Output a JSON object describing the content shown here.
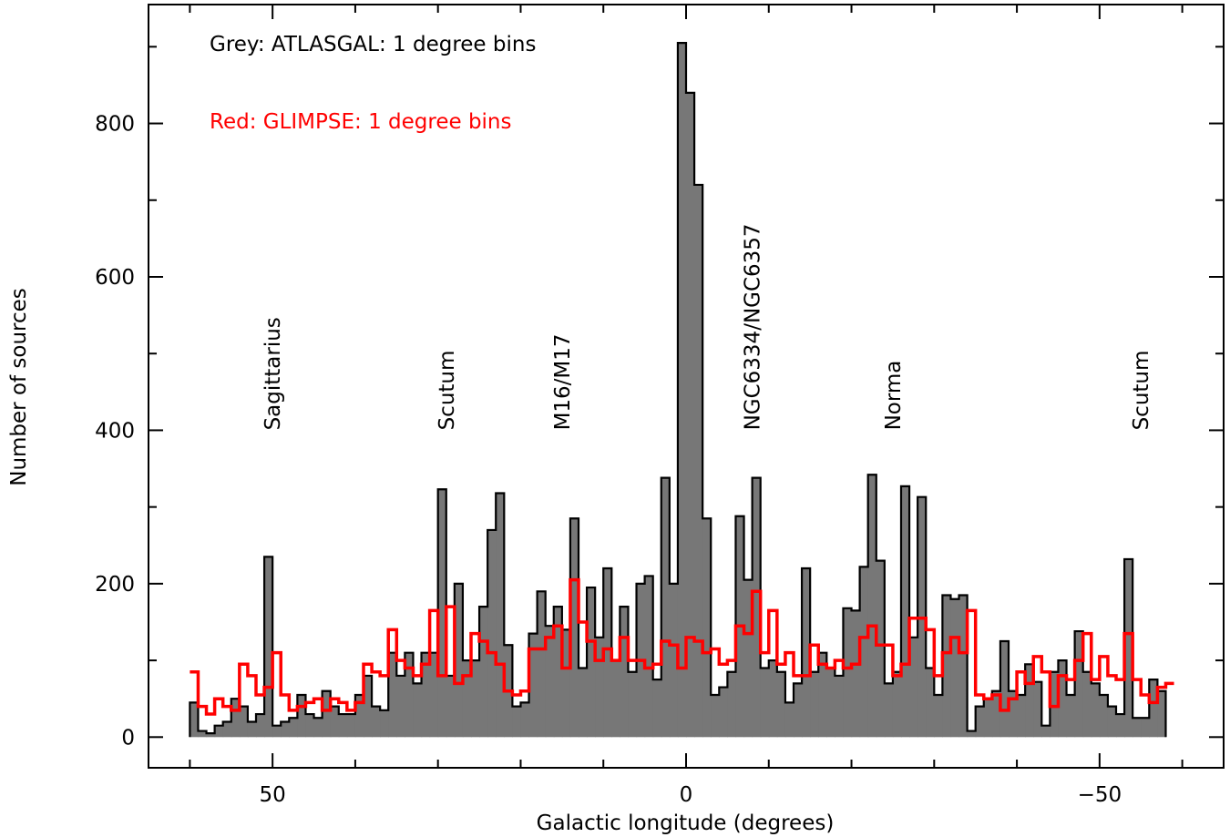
{
  "chart_data": {
    "type": "histogram",
    "xlabel": "Galactic longitude (degrees)",
    "ylabel": "Number of sources",
    "xlim": [
      65,
      -65
    ],
    "ylim": [
      -40,
      955
    ],
    "x_ticks": [
      50,
      0,
      -50
    ],
    "x_tick_labels": [
      "50",
      "0",
      "−50"
    ],
    "y_ticks": [
      0,
      200,
      400,
      600,
      800
    ],
    "y_tick_labels": [
      "0",
      "200",
      "400",
      "600",
      "800"
    ],
    "grid": false,
    "legend": [
      {
        "text": "Grey: ATLASGAL: 1 degree bins",
        "color": "#000000"
      },
      {
        "text": "Red: GLIMPSE: 1 degree bins",
        "color": "#ff0000"
      }
    ],
    "annotations": [
      {
        "text": "Sagittarius",
        "l": 50
      },
      {
        "text": "Scutum",
        "l": 29
      },
      {
        "text": "M16/M17",
        "l": 15
      },
      {
        "text": "NGC6334/NGC6357",
        "l": -8
      },
      {
        "text": "Norma",
        "l": -25
      },
      {
        "text": "Scutum",
        "l": -55
      }
    ],
    "bin_edges_start": 60,
    "bin_width": 1,
    "series": [
      {
        "name": "ATLASGAL",
        "color": "#777777",
        "values": [
          45,
          8,
          5,
          15,
          20,
          50,
          40,
          20,
          30,
          235,
          15,
          20,
          25,
          55,
          30,
          25,
          60,
          40,
          30,
          30,
          55,
          80,
          40,
          35,
          110,
          80,
          110,
          70,
          110,
          110,
          323,
          80,
          200,
          100,
          100,
          170,
          270,
          318,
          120,
          40,
          45,
          135,
          190,
          145,
          170,
          140,
          285,
          90,
          195,
          130,
          220,
          100,
          170,
          85,
          200,
          210,
          75,
          338,
          200,
          905,
          840,
          720,
          285,
          55,
          65,
          85,
          288,
          205,
          338,
          90,
          100,
          85,
          45,
          70,
          220,
          85,
          110,
          90,
          80,
          168,
          165,
          222,
          342,
          230,
          70,
          85,
          327,
          130,
          313,
          90,
          55,
          185,
          180,
          185,
          8,
          40,
          50,
          60,
          125,
          60,
          55,
          95,
          72,
          15,
          85,
          100,
          55,
          138,
          85,
          70,
          55,
          40,
          30,
          232,
          25,
          25,
          75,
          60
        ]
      },
      {
        "name": "GLIMPSE",
        "color": "#ff0000",
        "values": [
          85,
          40,
          30,
          50,
          40,
          35,
          95,
          80,
          55,
          65,
          110,
          55,
          35,
          40,
          45,
          50,
          35,
          50,
          45,
          35,
          45,
          95,
          85,
          80,
          140,
          100,
          90,
          80,
          95,
          165,
          80,
          170,
          70,
          80,
          135,
          125,
          110,
          95,
          60,
          55,
          60,
          115,
          115,
          130,
          145,
          90,
          205,
          150,
          125,
          100,
          115,
          100,
          130,
          100,
          100,
          90,
          95,
          125,
          120,
          90,
          130,
          125,
          110,
          115,
          95,
          100,
          145,
          135,
          190,
          110,
          165,
          95,
          110,
          80,
          80,
          120,
          95,
          90,
          100,
          90,
          95,
          130,
          145,
          120,
          120,
          80,
          95,
          155,
          155,
          140,
          80,
          110,
          130,
          110,
          165,
          55,
          50,
          55,
          35,
          50,
          85,
          70,
          105,
          85,
          40,
          80,
          75,
          100,
          135,
          75,
          105,
          80,
          75,
          135,
          75,
          55,
          45,
          65,
          70
        ]
      }
    ]
  }
}
